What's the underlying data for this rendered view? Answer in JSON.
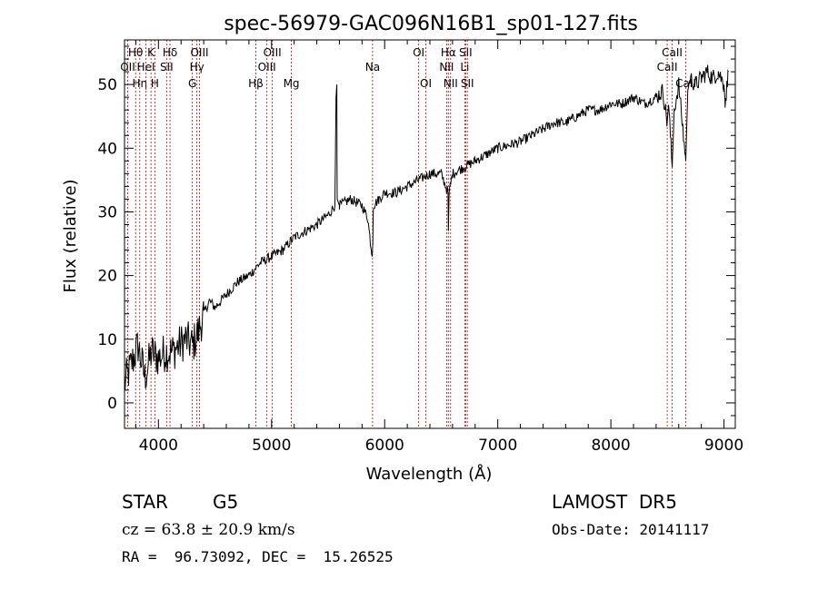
{
  "chart_data": {
    "type": "line",
    "title": "spec-56979-GAC096N16B1_sp01-127.fits",
    "xlabel": "Wavelength (Å)",
    "ylabel": "Flux (relative)",
    "xlim": [
      3700,
      9100
    ],
    "ylim": [
      -4,
      57
    ],
    "xticks": [
      4000,
      5000,
      6000,
      7000,
      8000,
      9000
    ],
    "yticks": [
      0,
      10,
      20,
      30,
      40,
      50
    ],
    "grid": false,
    "line_color": "#000000",
    "marker_color": "#cc0000",
    "spectrum": {
      "x": [
        3700,
        3760,
        3820,
        3880,
        3940,
        4000,
        4060,
        4120,
        4180,
        4240,
        4300,
        4350,
        4400,
        4450,
        4500,
        4600,
        4700,
        4800,
        4900,
        5000,
        5100,
        5200,
        5300,
        5400,
        5500,
        5560,
        5570,
        5577,
        5580,
        5600,
        5700,
        5800,
        5850,
        5890,
        5895,
        5900,
        5950,
        6000,
        6100,
        6200,
        6300,
        6400,
        6500,
        6560,
        6563,
        6570,
        6600,
        6700,
        6800,
        6900,
        7000,
        7100,
        7200,
        7300,
        7400,
        7500,
        7600,
        7700,
        7800,
        7900,
        8000,
        8100,
        8200,
        8300,
        8400,
        8460,
        8498,
        8510,
        8542,
        8560,
        8600,
        8662,
        8680,
        8700,
        8750,
        8800,
        8850,
        8900,
        8950,
        9000,
        9010,
        9040
      ],
      "y": [
        3,
        6,
        9,
        4,
        8,
        7,
        8,
        8,
        9,
        10,
        9,
        11,
        14,
        16,
        15,
        17,
        19,
        20,
        22,
        23,
        24,
        26,
        27,
        28,
        29.5,
        31,
        48,
        50,
        32,
        31,
        32,
        31,
        29,
        23,
        25,
        31,
        32,
        33,
        33,
        34,
        35,
        36,
        36,
        33,
        27,
        33,
        36,
        37,
        38,
        39,
        40,
        40.5,
        41,
        42,
        43,
        44,
        44,
        45,
        46,
        46,
        47,
        47,
        48,
        47,
        48,
        49,
        44,
        47,
        37,
        46,
        50,
        38,
        49,
        51,
        50,
        51,
        52,
        51,
        52,
        50,
        47,
        52
      ]
    },
    "lines": [
      {
        "wavelength": 3728,
        "label": "OII",
        "row": 2
      },
      {
        "wavelength": 3798,
        "label": "Hθ",
        "row": 1
      },
      {
        "wavelength": 3835,
        "label": "Hη",
        "row": 3
      },
      {
        "wavelength": 3889,
        "label": "HeI",
        "row": 2
      },
      {
        "wavelength": 3934,
        "label": "K",
        "row": 1
      },
      {
        "wavelength": 3968,
        "label": "H",
        "row": 3
      },
      {
        "wavelength": 4072,
        "label": "SII",
        "row": 2
      },
      {
        "wavelength": 4102,
        "label": "Hδ",
        "row": 1
      },
      {
        "wavelength": 4300,
        "label": "G",
        "row": 3
      },
      {
        "wavelength": 4340,
        "label": "Hγ",
        "row": 2
      },
      {
        "wavelength": 4363,
        "label": "OIII",
        "row": 1
      },
      {
        "wavelength": 4861,
        "label": "Hβ",
        "row": 3
      },
      {
        "wavelength": 4959,
        "label": "OIII",
        "row": 2
      },
      {
        "wavelength": 5007,
        "label": "OIII",
        "row": 1
      },
      {
        "wavelength": 5175,
        "label": "Mg",
        "row": 3
      },
      {
        "wavelength": 5893,
        "label": "Na",
        "row": 2
      },
      {
        "wavelength": 6300,
        "label": "OI",
        "row": 1
      },
      {
        "wavelength": 6364,
        "label": "OI",
        "row": 3
      },
      {
        "wavelength": 6548,
        "label": "NII",
        "row": 2
      },
      {
        "wavelength": 6563,
        "label": "Hα",
        "row": 1
      },
      {
        "wavelength": 6583,
        "label": "NII",
        "row": 3
      },
      {
        "wavelength": 6708,
        "label": "Li",
        "row": 2
      },
      {
        "wavelength": 6716,
        "label": "SII",
        "row": 1
      },
      {
        "wavelength": 6731,
        "label": "SII",
        "row": 3
      },
      {
        "wavelength": 8498,
        "label": "CaII",
        "row": 2
      },
      {
        "wavelength": 8542,
        "label": "CaII",
        "row": 1
      },
      {
        "wavelength": 8662,
        "label": "CaII",
        "row": 3
      }
    ]
  },
  "info": {
    "class": "STAR",
    "subclass": "G5",
    "survey": "LAMOST  DR5",
    "cz_line": "cz = 63.8 ± 20.9 km/s",
    "obs_date": "Obs-Date: 20141117",
    "radec": "RA =  96.73092, DEC =  15.26525"
  }
}
